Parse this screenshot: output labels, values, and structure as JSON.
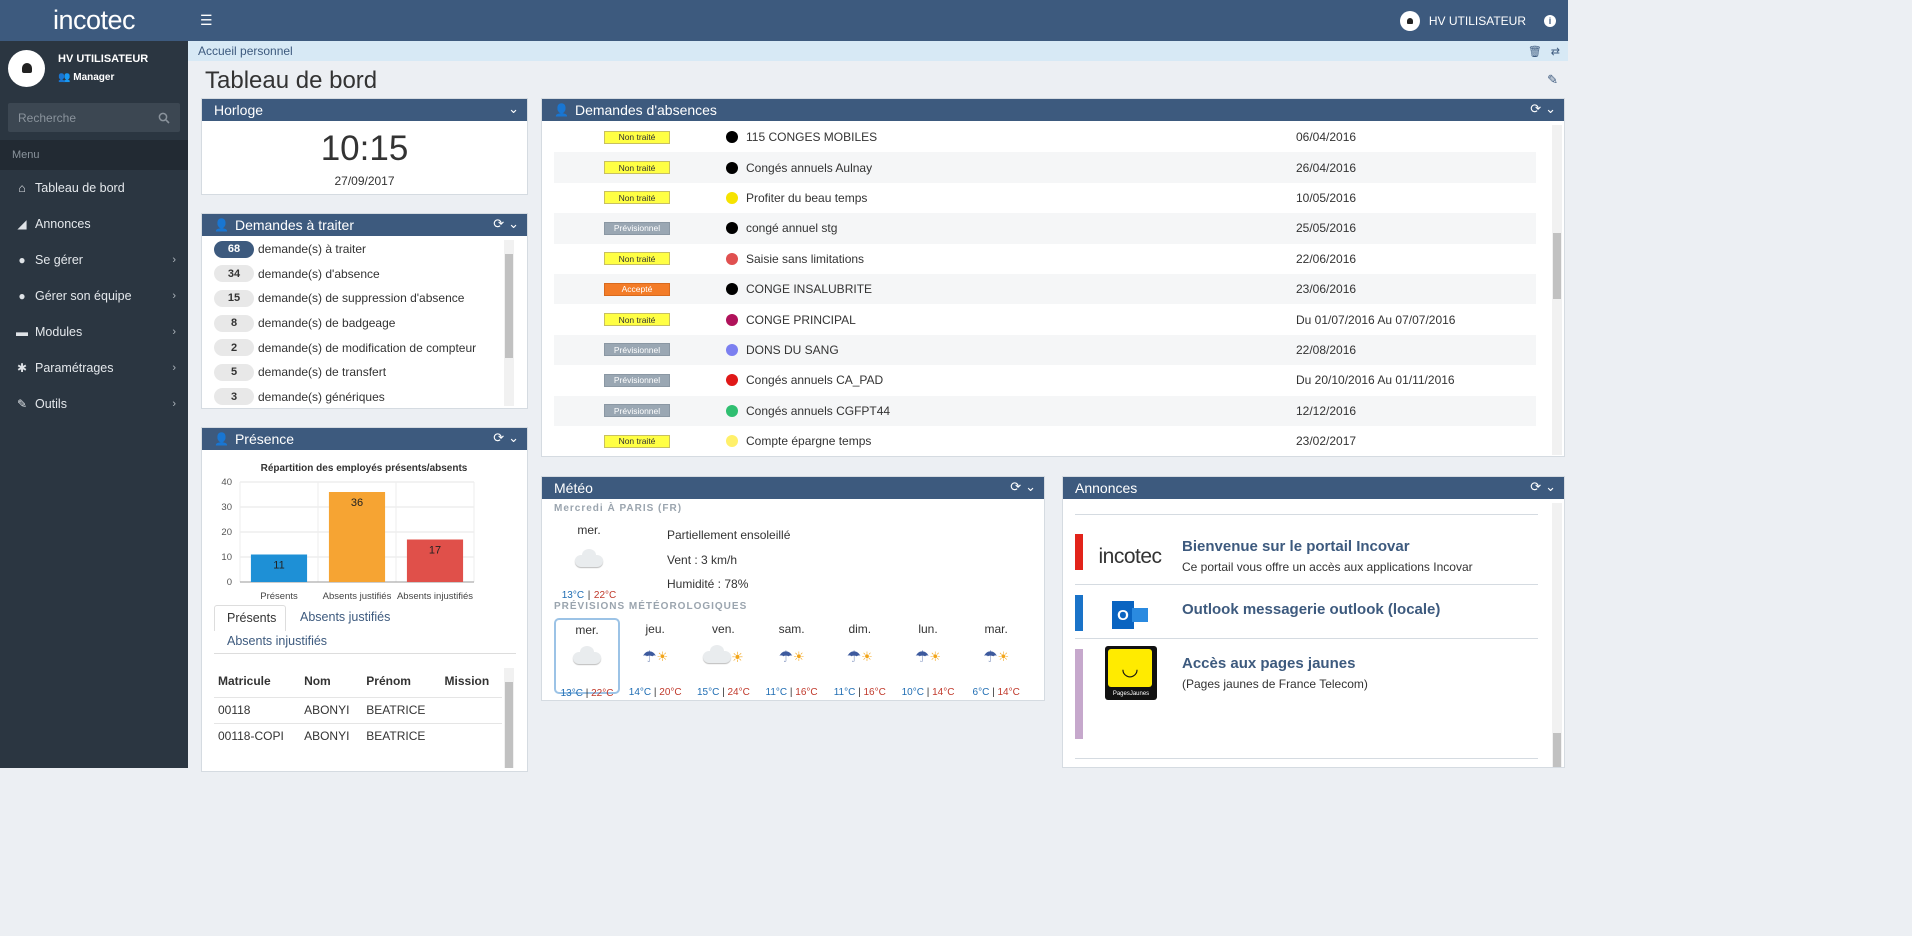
{
  "app": {
    "logo": "incotec"
  },
  "user": {
    "name": "HV UTILISATEUR",
    "role": "Manager"
  },
  "search": {
    "placeholder": "Recherche"
  },
  "menu": {
    "header": "Menu",
    "items": [
      {
        "label": "Tableau de bord",
        "icon": "home-icon",
        "glyph": "⌂",
        "chevron": false
      },
      {
        "label": "Annonces",
        "icon": "megaphone-icon",
        "glyph": "◢",
        "chevron": false
      },
      {
        "label": "Se gérer",
        "icon": "user-icon",
        "glyph": "●",
        "chevron": true
      },
      {
        "label": "Gérer son équipe",
        "icon": "team-icon",
        "glyph": "●",
        "chevron": true
      },
      {
        "label": "Modules",
        "icon": "folder-icon",
        "glyph": "▬",
        "chevron": true
      },
      {
        "label": "Paramétrages",
        "icon": "gear-icon",
        "glyph": "✱",
        "chevron": true
      },
      {
        "label": "Outils",
        "icon": "wrench-icon",
        "glyph": "✎",
        "chevron": true
      }
    ]
  },
  "topbar": {
    "user_name": "HV UTILISATEUR"
  },
  "breadcrumb": {
    "label": "Accueil personnel"
  },
  "page": {
    "title": "Tableau de bord"
  },
  "clock": {
    "title": "Horloge",
    "time": "10:15",
    "date": "27/09/2017"
  },
  "requests": {
    "title": "Demandes à traiter",
    "items": [
      {
        "count": "68",
        "label": "demande(s) à traiter",
        "dark": true
      },
      {
        "count": "34",
        "label": "demande(s) d'absence"
      },
      {
        "count": "15",
        "label": "demande(s) de suppression d'absence"
      },
      {
        "count": "8",
        "label": "demande(s) de badgeage"
      },
      {
        "count": "2",
        "label": "demande(s) de modification de compteur"
      },
      {
        "count": "5",
        "label": "demande(s) de transfert"
      },
      {
        "count": "3",
        "label": "demande(s) génériques"
      }
    ]
  },
  "absences": {
    "title": "Demandes d'absences",
    "colors": {
      "non_traite": "#ffff44",
      "previsionnel": "#9aa7b3",
      "accepte": "#f37c28"
    },
    "rows": [
      {
        "status": "Non traité",
        "kind": "nt",
        "color": "#000000",
        "label": "115 CONGES MOBILES",
        "date": "06/04/2016"
      },
      {
        "status": "Non traité",
        "kind": "nt",
        "color": "#000000",
        "label": "Congés annuels Aulnay",
        "date": "26/04/2016"
      },
      {
        "status": "Non traité",
        "kind": "nt",
        "color": "#f6e300",
        "label": "Profiter du beau temps",
        "date": "10/05/2016"
      },
      {
        "status": "Prévisionnel",
        "kind": "pr",
        "color": "#000000",
        "label": "congé annuel stg",
        "date": "25/05/2016"
      },
      {
        "status": "Non traité",
        "kind": "nt",
        "color": "#e05050",
        "label": "Saisie sans limitations",
        "date": "22/06/2016"
      },
      {
        "status": "Accepté",
        "kind": "ac",
        "color": "#000000",
        "label": "CONGE INSALUBRITE",
        "date": "23/06/2016"
      },
      {
        "status": "Non traité",
        "kind": "nt",
        "color": "#b0125a",
        "label": "CONGE PRINCIPAL",
        "date": "Du 01/07/2016 Au 07/07/2016"
      },
      {
        "status": "Prévisionnel",
        "kind": "pr",
        "color": "#7b7ff0",
        "label": "DONS DU SANG",
        "date": "22/08/2016"
      },
      {
        "status": "Prévisionnel",
        "kind": "pr",
        "color": "#e01818",
        "label": "Congés annuels CA_PAD",
        "date": "Du 20/10/2016 Au 01/11/2016"
      },
      {
        "status": "Prévisionnel",
        "kind": "pr",
        "color": "#2fbf71",
        "label": "Congés annuels CGFPT44",
        "date": "12/12/2016"
      },
      {
        "status": "Non traité",
        "kind": "nt",
        "color": "#fff06a",
        "label": "Compte épargne temps",
        "date": "23/02/2017"
      }
    ]
  },
  "presence": {
    "title": "Présence",
    "tabs": [
      "Présents",
      "Absents justifiés",
      "Absents injustifiés"
    ],
    "table": {
      "headers": [
        "Matricule",
        "Nom",
        "Prénom",
        "Mission"
      ],
      "rows": [
        [
          "00118",
          "ABONYI",
          "BEATRICE",
          ""
        ],
        [
          "00118-COPI",
          "ABONYI",
          "BEATRICE",
          ""
        ]
      ]
    }
  },
  "chart_data": {
    "type": "bar",
    "title": "Répartition des employés présents/absents",
    "categories": [
      "Présents",
      "Absents justifiés",
      "Absents injustifiés"
    ],
    "values": [
      11,
      36,
      17
    ],
    "colors": [
      "#1e90d6",
      "#f6a433",
      "#e0504a"
    ],
    "ylim": [
      0,
      40
    ],
    "yticks": [
      0,
      10,
      20,
      30,
      40
    ],
    "grid": true
  },
  "meteo": {
    "title": "Météo",
    "today": {
      "city": "Mercredi À PARIS (FR)",
      "day": "mer.",
      "condition": "Partiellement ensoleillé",
      "wind": "Vent : 3 km/h",
      "humidity": "Humidité : 78%",
      "lo": "13°C",
      "hi": "22°C"
    },
    "forecast_title": "PRÉVISIONS MÉTÉOROLOGIQUES",
    "forecast": [
      {
        "day": "mer.",
        "lo": "13°C",
        "hi": "22°C",
        "icon": "cloud-icon",
        "selected": true
      },
      {
        "day": "jeu.",
        "lo": "14°C",
        "hi": "20°C",
        "icon": "rain-sun-icon"
      },
      {
        "day": "ven.",
        "lo": "15°C",
        "hi": "24°C",
        "icon": "cloud-sun-icon"
      },
      {
        "day": "sam.",
        "lo": "11°C",
        "hi": "16°C",
        "icon": "rain-sun-icon"
      },
      {
        "day": "dim.",
        "lo": "11°C",
        "hi": "16°C",
        "icon": "rain-sun-icon"
      },
      {
        "day": "lun.",
        "lo": "10°C",
        "hi": "14°C",
        "icon": "rain-sun-icon"
      },
      {
        "day": "mar.",
        "lo": "6°C",
        "hi": "14°C",
        "icon": "rain-sun-icon"
      }
    ]
  },
  "announcements": {
    "title": "Annonces",
    "items": [
      {
        "title": "Bienvenue sur le portail Incovar",
        "sub": "Ce portail vous offre un accès aux applications Incovar",
        "bar": "#e2231a",
        "logo": "incotec"
      },
      {
        "title": "Outlook messagerie outlook (locale)",
        "sub": "",
        "bar": "#1a73c8",
        "logo": "outlook"
      },
      {
        "title": "Accès aux pages jaunes",
        "sub": "(Pages jaunes de France Telecom)",
        "bar": "#c6a8cc",
        "logo": "PagesJaunes"
      }
    ]
  }
}
